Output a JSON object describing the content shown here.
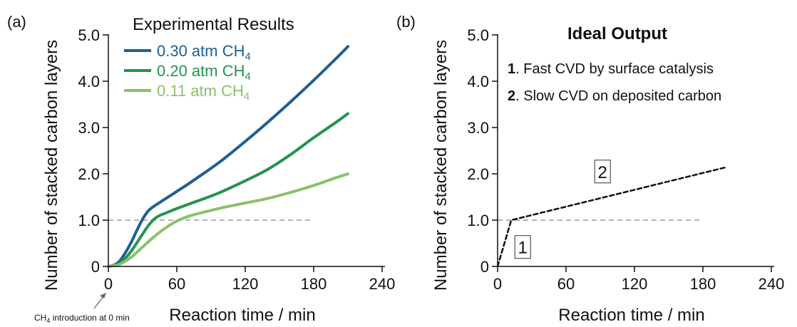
{
  "colors": {
    "s030": "#1f5f94",
    "s020": "#24944e",
    "s011": "#8cc06a",
    "ref": "#9a9a9a",
    "ideal": "#111111"
  },
  "chart_data": [
    {
      "type": "line",
      "panel_label": "(a)",
      "title": "Experimental Results",
      "xlabel": "Reaction time / min",
      "ylabel": "Number of stacked carbon layers",
      "xlim": [
        0,
        250
      ],
      "ylim": [
        0,
        5.0
      ],
      "xticks": [
        "0",
        "60",
        "120",
        "180",
        "240"
      ],
      "yticks": [
        "0",
        "1.0",
        "2.0",
        "3.0",
        "4.0",
        "5.0"
      ],
      "reference_line": {
        "y": 1.0,
        "x_range": [
          0,
          180
        ]
      },
      "annotation": {
        "text_pre": "CH",
        "text_sub": "4",
        "text_post": " introduction at 0 min",
        "x": 0
      },
      "legend_placement": "top-left",
      "series": [
        {
          "name_pre": "0.30 atm CH",
          "name_sub": "4",
          "color_key": "s030",
          "x": [
            0,
            5,
            10,
            15,
            20,
            25,
            30,
            35,
            40,
            45,
            50,
            60,
            70,
            80,
            90,
            100,
            120,
            140,
            160,
            180,
            200,
            210
          ],
          "y": [
            0,
            0.03,
            0.12,
            0.3,
            0.52,
            0.78,
            1.02,
            1.2,
            1.3,
            1.38,
            1.46,
            1.62,
            1.78,
            1.95,
            2.12,
            2.3,
            2.7,
            3.12,
            3.56,
            4.02,
            4.5,
            4.75
          ]
        },
        {
          "name_pre": "0.20 atm CH",
          "name_sub": "4",
          "color_key": "s020",
          "x": [
            0,
            5,
            10,
            15,
            20,
            25,
            30,
            35,
            40,
            45,
            50,
            60,
            70,
            80,
            90,
            100,
            120,
            140,
            160,
            180,
            200,
            210
          ],
          "y": [
            0,
            0.02,
            0.07,
            0.18,
            0.33,
            0.51,
            0.7,
            0.88,
            1.02,
            1.1,
            1.15,
            1.25,
            1.34,
            1.43,
            1.52,
            1.62,
            1.85,
            2.1,
            2.42,
            2.78,
            3.12,
            3.3
          ]
        },
        {
          "name_pre": "0.11 atm CH",
          "name_sub": "4",
          "color_key": "s011",
          "x": [
            0,
            10,
            20,
            30,
            40,
            50,
            60,
            70,
            80,
            90,
            100,
            120,
            140,
            160,
            180,
            200,
            210
          ],
          "y": [
            0,
            0.05,
            0.2,
            0.42,
            0.64,
            0.83,
            0.98,
            1.08,
            1.15,
            1.21,
            1.27,
            1.37,
            1.47,
            1.6,
            1.75,
            1.92,
            2.0
          ]
        }
      ]
    },
    {
      "type": "line",
      "panel_label": "(b)",
      "title": "Ideal Output",
      "xlabel": "Reaction time / min",
      "ylabel": "Number of stacked carbon layers",
      "xlim": [
        0,
        250
      ],
      "ylim": [
        0,
        5.0
      ],
      "xticks": [
        "0",
        "60",
        "120",
        "180",
        "240"
      ],
      "yticks": [
        "0",
        "1.0",
        "2.0",
        "3.0",
        "4.0",
        "5.0"
      ],
      "reference_line": {
        "y": 1.0,
        "x_range": [
          0,
          180
        ]
      },
      "notes": [
        {
          "num": "1",
          "text": ". Fast CVD by surface catalysis"
        },
        {
          "num": "2",
          "text": ". Slow CVD on deposited carbon"
        }
      ],
      "segment_labels": [
        {
          "text": "1",
          "x": 22,
          "y": 0.42
        },
        {
          "text": "2",
          "x": 92,
          "y": 2.05
        }
      ],
      "series": [
        {
          "color_key": "ideal",
          "style": "dashed",
          "x": [
            0,
            12,
            200
          ],
          "y": [
            0,
            1.0,
            2.14
          ]
        }
      ]
    }
  ]
}
